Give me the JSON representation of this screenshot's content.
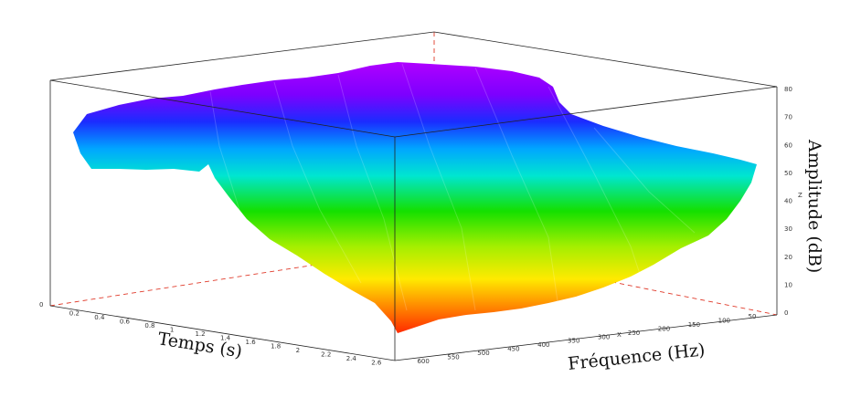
{
  "chart_data": {
    "type": "surface3d",
    "xlabel": "Temps (s)",
    "ylabel": "Fréquence (Hz)",
    "zlabel": "Amplitude (dB)",
    "x_ticks": [
      "0.2",
      "0.4",
      "0.6",
      "0.8",
      "1",
      "1.2",
      "1.4",
      "1.6",
      "1.8",
      "2",
      "2.2",
      "2.4",
      "2.6"
    ],
    "y_ticks": [
      "600",
      "550",
      "500",
      "450",
      "400",
      "350",
      "300",
      "250",
      "200",
      "150",
      "100",
      "50"
    ],
    "z_ticks": [
      "0",
      "10",
      "20",
      "30",
      "40",
      "50",
      "60",
      "70",
      "80"
    ],
    "y_corner_tick": "0",
    "z_inline_label": "Z",
    "y_inline_label": "X",
    "xlim": [
      0,
      2.6
    ],
    "ylim": [
      50,
      600
    ],
    "zlim": [
      0,
      80
    ],
    "grid": false,
    "colormap": "rainbow",
    "colors": {
      "low": "#ff3a00",
      "mid": "#22e000",
      "high": "#b000ff",
      "box": "#222222",
      "hidden_edges": "#e03a2a"
    },
    "surface_profile": {
      "time_s": [
        0.1,
        0.5,
        0.9,
        1.3,
        1.7,
        2.1,
        2.5
      ],
      "max_amplitude_db": [
        62,
        66,
        68,
        70,
        72,
        72,
        73
      ],
      "freq_hz_at_far_edge": [
        600,
        500,
        400,
        300,
        200,
        100,
        50
      ],
      "min_amplitude_db": [
        5,
        8,
        10,
        12,
        18,
        28,
        42
      ]
    }
  }
}
